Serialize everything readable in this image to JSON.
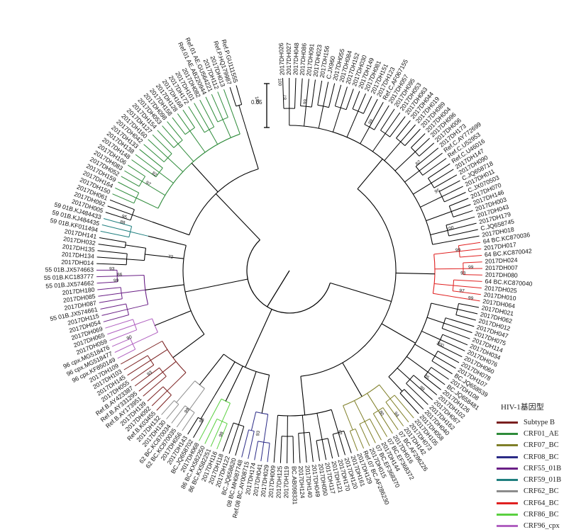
{
  "legend": {
    "title": "HIV-1基因型",
    "items": [
      {
        "label": "Subtype B",
        "color": "#7a1f1f"
      },
      {
        "label": "CRF01_AE",
        "color": "#2e8b3a"
      },
      {
        "label": "CRF07_BC",
        "color": "#7f7f28"
      },
      {
        "label": "CRF08_BC",
        "color": "#2b2b86"
      },
      {
        "label": "CRF55_01B",
        "color": "#6a1f86"
      },
      {
        "label": "CRF59_01B",
        "color": "#1f7f7f"
      },
      {
        "label": "CRF62_BC",
        "color": "#8c8c8c"
      },
      {
        "label": "CRF64_BC",
        "color": "#e02020"
      },
      {
        "label": "CRF86_BC",
        "color": "#5ad040"
      },
      {
        "label": "CRF96_cpx",
        "color": "#b060c0"
      }
    ]
  },
  "scale_bar": {
    "label": "0.05"
  },
  "leaves": [
    {
      "label": "2017DH026",
      "group": "C"
    },
    {
      "label": "2017DH027",
      "group": "C"
    },
    {
      "label": "2017DH048",
      "group": "C"
    },
    {
      "label": "2017DH086",
      "group": "C"
    },
    {
      "label": "2017DH091",
      "group": "C"
    },
    {
      "label": "2017DH023",
      "group": "C"
    },
    {
      "label": "2017DH156",
      "group": "C"
    },
    {
      "label": "C.JX960",
      "group": "C"
    },
    {
      "label": "2017DH055",
      "group": "C"
    },
    {
      "label": "2017DH084",
      "group": "C"
    },
    {
      "label": "2017DH152",
      "group": "C"
    },
    {
      "label": "2017DH030",
      "group": "C"
    },
    {
      "label": "2017DH149",
      "group": "C"
    },
    {
      "label": "2017DH081",
      "group": "C"
    },
    {
      "label": "2017DH151",
      "group": "C"
    },
    {
      "label": "2017DH123",
      "group": "C"
    },
    {
      "label": "Ref.C.AF067155",
      "group": "C"
    },
    {
      "label": "2017DH057",
      "group": "C"
    },
    {
      "label": "2017DH095",
      "group": "C"
    },
    {
      "label": "2017DH053",
      "group": "C"
    },
    {
      "label": "2017DH063",
      "group": "C"
    },
    {
      "label": "2017DH044",
      "group": "C"
    },
    {
      "label": "2017DH019",
      "group": "C"
    },
    {
      "label": "2017DH089",
      "group": "C"
    },
    {
      "label": "2017DH004",
      "group": "C"
    },
    {
      "label": "2017DH096",
      "group": "C"
    },
    {
      "label": "2017DH006",
      "group": "C"
    },
    {
      "label": "2017DH173",
      "group": "C"
    },
    {
      "label": "Ref.C.AY772699",
      "group": "C"
    },
    {
      "label": "Ref.C.U52953",
      "group": "C"
    },
    {
      "label": "Ref.C.U46016",
      "group": "C"
    },
    {
      "label": "2017DH147",
      "group": "C"
    },
    {
      "label": "2017DH090",
      "group": "C"
    },
    {
      "label": "C.JQ658718",
      "group": "C"
    },
    {
      "label": "2017DH011",
      "group": "C"
    },
    {
      "label": "C.JX070503",
      "group": "C"
    },
    {
      "label": "2017DH070",
      "group": "C"
    },
    {
      "label": "2017DH146",
      "group": "C"
    },
    {
      "label": "2017DH003",
      "group": "C"
    },
    {
      "label": "2017DH043",
      "group": "C"
    },
    {
      "label": "2017DH179",
      "group": "C"
    },
    {
      "label": "C.JQ658745",
      "group": "C"
    },
    {
      "label": "2017DH018",
      "group": "C"
    },
    {
      "label": "64 BC.KC870036",
      "group": "CRF64_BC"
    },
    {
      "label": "2017DH017",
      "group": "CRF64_BC"
    },
    {
      "label": "64 BC.KC870042",
      "group": "CRF64_BC"
    },
    {
      "label": "2017DH024",
      "group": "CRF64_BC"
    },
    {
      "label": "2017DH007",
      "group": "CRF64_BC"
    },
    {
      "label": "2017DH080",
      "group": "CRF64_BC"
    },
    {
      "label": "64 BC.KC870040",
      "group": "CRF64_BC"
    },
    {
      "label": "2017DH025",
      "group": "CRF64_BC"
    },
    {
      "label": "2017DH010",
      "group": "CRF64_BC"
    },
    {
      "label": "2017DH064",
      "group": "CRF64_BC"
    },
    {
      "label": "2017DH021",
      "group": "C"
    },
    {
      "label": "2017DH062",
      "group": "C"
    },
    {
      "label": "2017DH012",
      "group": "C"
    },
    {
      "label": "2017DH047",
      "group": "C"
    },
    {
      "label": "2017DH075",
      "group": "C"
    },
    {
      "label": "2017DH114",
      "group": "C"
    },
    {
      "label": "2017DH034",
      "group": "C"
    },
    {
      "label": "2017DH076",
      "group": "C"
    },
    {
      "label": "2017DH060",
      "group": "C"
    },
    {
      "label": "2017DH078",
      "group": "C"
    },
    {
      "label": "2017DH107",
      "group": "C"
    },
    {
      "label": "BC.JQ658539",
      "group": "C"
    },
    {
      "label": "2017DH108",
      "group": "C"
    },
    {
      "label": "BC.JQ658481",
      "group": "C"
    },
    {
      "label": "2017DH126",
      "group": "C"
    },
    {
      "label": "2017DH102",
      "group": "C"
    },
    {
      "label": "2017DH067",
      "group": "C"
    },
    {
      "label": "2017DH162",
      "group": "C"
    },
    {
      "label": "2017DH040",
      "group": "C"
    },
    {
      "label": "2017DH058",
      "group": "C"
    },
    {
      "label": "2017DH105",
      "group": "CRF07_BC"
    },
    {
      "label": "2017DH073",
      "group": "CRF07_BC"
    },
    {
      "label": "2017DH142",
      "group": "CRF07_BC"
    },
    {
      "label": "07 BC.AF286226",
      "group": "CRF07_BC"
    },
    {
      "label": "2017DH016",
      "group": "CRF07_BC"
    },
    {
      "label": "07 BC.EF368372",
      "group": "CRF07_BC"
    },
    {
      "label": "2017DH144",
      "group": "CRF07_BC"
    },
    {
      "label": "07 BC.EF368370",
      "group": "CRF07_BC"
    },
    {
      "label": "2017DH015",
      "group": "CRF07_BC"
    },
    {
      "label": "Ref.07 BC.AF286230",
      "group": "CRF07_BC"
    },
    {
      "label": "2017DH129",
      "group": "CRF07_BC"
    },
    {
      "label": "2017DH161",
      "group": "C"
    },
    {
      "label": "2017DH120",
      "group": "C"
    },
    {
      "label": "2017DH170",
      "group": "C"
    },
    {
      "label": "2017DH121",
      "group": "C"
    },
    {
      "label": "2017DH117",
      "group": "C"
    },
    {
      "label": "2017DH050",
      "group": "C"
    },
    {
      "label": "2017DH049",
      "group": "C"
    },
    {
      "label": "2017DH140",
      "group": "C"
    },
    {
      "label": "2017DH124",
      "group": "C"
    },
    {
      "label": "BC.AB098331",
      "group": "C"
    },
    {
      "label": "2017DH119",
      "group": "C"
    },
    {
      "label": "2017DH125",
      "group": "C"
    },
    {
      "label": "2017DH009",
      "group": "C"
    },
    {
      "label": "2017DH029",
      "group": "CRF08_BC"
    },
    {
      "label": "2017DH041",
      "group": "CRF08_BC"
    },
    {
      "label": "2017DH174",
      "group": "CRF08_BC"
    },
    {
      "label": "Ref.08 BC.AY008715",
      "group": "CRF08_BC"
    },
    {
      "label": "08 BC.MH087748",
      "group": "CRF08_BC"
    },
    {
      "label": "BC.JQ658620",
      "group": "C"
    },
    {
      "label": "2017DH122",
      "group": "C"
    },
    {
      "label": "2017DH118",
      "group": "C"
    },
    {
      "label": "2017DH116",
      "group": "CRF86_BC"
    },
    {
      "label": "86 BC.KX582251",
      "group": "CRF86_BC"
    },
    {
      "label": "86 BC.KX582250",
      "group": "CRF86_BC"
    },
    {
      "label": "2017DH068",
      "group": "CRF86_BC"
    },
    {
      "label": "BC.JQ658702",
      "group": "C"
    },
    {
      "label": "2017DH143",
      "group": "C"
    },
    {
      "label": "2017DH056",
      "group": "CRF62_BC"
    },
    {
      "label": "62 BC.KC870035",
      "group": "CRF62_BC"
    },
    {
      "label": "62 BC.KC870034",
      "group": "CRF62_BC"
    },
    {
      "label": "2017DH130",
      "group": "CRF62_BC"
    },
    {
      "label": "2017DH132",
      "group": "CRF62_BC"
    },
    {
      "label": "Ref.B.K03455",
      "group": "B"
    },
    {
      "label": "2017DH092",
      "group": "B"
    },
    {
      "label": "2017DH139",
      "group": "B"
    },
    {
      "label": "Ref.B.AY173951",
      "group": "B"
    },
    {
      "label": "Ref.B.AY331295",
      "group": "B"
    },
    {
      "label": "Ref.B.AY423387",
      "group": "B"
    },
    {
      "label": "2017DH055",
      "group": "B"
    },
    {
      "label": "2017DH145",
      "group": "B"
    },
    {
      "label": "2017DH103",
      "group": "B"
    },
    {
      "label": "2017DH109",
      "group": "B"
    },
    {
      "label": "96 cpx.KF850149",
      "group": "CRF96_cpx"
    },
    {
      "label": "96 cpx.MG518477",
      "group": "CRF96_cpx"
    },
    {
      "label": "96 cpx.MG518476",
      "group": "CRF96_cpx"
    },
    {
      "label": "2017DH059",
      "group": "CRF96_cpx"
    },
    {
      "label": "2017DH065",
      "group": "CRF96_cpx"
    },
    {
      "label": "2017DH069",
      "group": "CRF96_cpx"
    },
    {
      "label": "2017DH054",
      "group": "CRF55_01B"
    },
    {
      "label": "2017DH115",
      "group": "CRF55_01B"
    },
    {
      "label": "55 01B.JX574661",
      "group": "CRF55_01B"
    },
    {
      "label": "2017DH087",
      "group": "CRF55_01B"
    },
    {
      "label": "2017DH085",
      "group": "CRF55_01B"
    },
    {
      "label": "2017DH180",
      "group": "CRF55_01B"
    },
    {
      "label": "55 01B.JX574662",
      "group": "CRF55_01B"
    },
    {
      "label": "55 01B.KC183777",
      "group": "CRF55_01B"
    },
    {
      "label": "55 01B.JX574663",
      "group": "CRF55_01B"
    },
    {
      "label": "2017DH014",
      "group": "X"
    },
    {
      "label": "2017DH134",
      "group": "X"
    },
    {
      "label": "2017DH135",
      "group": "X"
    },
    {
      "label": "2017DH032",
      "group": "X"
    },
    {
      "label": "2017DH141",
      "group": "X"
    },
    {
      "label": "59 01B.KF011494",
      "group": "CRF59_01B"
    },
    {
      "label": "59 01B.KJ484435",
      "group": "CRF59_01B"
    },
    {
      "label": "59 01B.KJ484433",
      "group": "CRF59_01B"
    },
    {
      "label": "2017DH005",
      "group": "X"
    },
    {
      "label": "2017DH092",
      "group": "X"
    },
    {
      "label": "2017DH061",
      "group": "X"
    },
    {
      "label": "2017DH150",
      "group": "CRF01_AE"
    },
    {
      "label": "2017DH164",
      "group": "CRF01_AE"
    },
    {
      "label": "2017DH159",
      "group": "CRF01_AE"
    },
    {
      "label": "2017DH052",
      "group": "CRF01_AE"
    },
    {
      "label": "2017DH083",
      "group": "CRF01_AE"
    },
    {
      "label": "2017DH106",
      "group": "CRF01_AE"
    },
    {
      "label": "2017DH148",
      "group": "CRF01_AE"
    },
    {
      "label": "2017DH138",
      "group": "CRF01_AE"
    },
    {
      "label": "2017DH133",
      "group": "CRF01_AE"
    },
    {
      "label": "2017DH042",
      "group": "CRF01_AE"
    },
    {
      "label": "2017DH160",
      "group": "CRF01_AE"
    },
    {
      "label": "2017DH127",
      "group": "CRF01_AE"
    },
    {
      "label": "2017DH154",
      "group": "CRF01_AE"
    },
    {
      "label": "2017DH053",
      "group": "CRF01_AE"
    },
    {
      "label": "2017DH098",
      "group": "CRF01_AE"
    },
    {
      "label": "2017DH158",
      "group": "CRF01_AE"
    },
    {
      "label": "2017DH128",
      "group": "CRF01_AE"
    },
    {
      "label": "2017DH168",
      "group": "CRF01_AE"
    },
    {
      "label": "2017DH172",
      "group": "CRF01_AE"
    },
    {
      "label": "2017DH101",
      "group": "CRF01_AE"
    },
    {
      "label": "2017DH082",
      "group": "CRF01_AE"
    },
    {
      "label": "Ref.01 AE.AB220944",
      "group": "CRF01_AE"
    },
    {
      "label": "Ref.01 AE.GU564221",
      "group": "CRF01_AE"
    },
    {
      "label": "2017DH112",
      "group": "CRF01_AE"
    },
    {
      "label": "2017DH013",
      "group": "CRF01_AE"
    },
    {
      "label": "Ref.P.HQ179987",
      "group": "X"
    },
    {
      "label": "Ref.P.GU111555",
      "group": "X"
    }
  ],
  "bootstrap_labels": [
    {
      "text": "100",
      "leaf": 184.5,
      "r": 0.98
    },
    {
      "text": "100",
      "leaf": 180.5,
      "r": 0.9
    },
    {
      "text": "87",
      "leaf": 0.5,
      "r": 0.9
    },
    {
      "text": "99",
      "leaf": 4,
      "r": 0.88
    },
    {
      "text": "99",
      "leaf": 16,
      "r": 0.88
    },
    {
      "text": "82",
      "leaf": 27,
      "r": 0.87
    },
    {
      "text": "95",
      "leaf": 33,
      "r": 0.87
    },
    {
      "text": "100",
      "leaf": 40,
      "r": 0.86
    },
    {
      "text": "99",
      "leaf": 44,
      "r": 0.88
    },
    {
      "text": "93",
      "leaf": 48,
      "r": 0.9
    },
    {
      "text": "99",
      "leaf": 47,
      "r": 0.94
    },
    {
      "text": "97",
      "leaf": 51,
      "r": 0.9
    },
    {
      "text": "99",
      "leaf": 52,
      "r": 0.95
    },
    {
      "text": "100",
      "leaf": 61,
      "r": 0.87
    },
    {
      "text": "85",
      "leaf": 67,
      "r": 0.9
    },
    {
      "text": "99",
      "leaf": 69,
      "r": 0.92
    },
    {
      "text": "80",
      "leaf": 77,
      "r": 0.88
    },
    {
      "text": "94",
      "leaf": 75,
      "r": 0.93
    },
    {
      "text": "97",
      "leaf": 85,
      "r": 0.88
    },
    {
      "text": "93",
      "leaf": 99,
      "r": 0.86
    },
    {
      "text": "99",
      "leaf": 105,
      "r": 0.92
    },
    {
      "text": "98",
      "leaf": 109,
      "r": 0.9
    },
    {
      "text": "99",
      "leaf": 112,
      "r": 0.9
    },
    {
      "text": "93",
      "leaf": 121,
      "r": 0.9
    },
    {
      "text": "90",
      "leaf": 128,
      "r": 0.9
    },
    {
      "text": "72",
      "leaf": 143,
      "r": 0.62
    },
    {
      "text": "99",
      "leaf": 138,
      "r": 0.9
    },
    {
      "text": "86",
      "leaf": 139,
      "r": 0.88
    },
    {
      "text": "93",
      "leaf": 140,
      "r": 0.92
    },
    {
      "text": "95",
      "leaf": 149,
      "r": 0.9
    },
    {
      "text": "88",
      "leaf": 148,
      "r": 0.9
    },
    {
      "text": "97",
      "leaf": 156,
      "r": 0.86
    },
    {
      "text": "82",
      "leaf": 158,
      "r": 0.86
    }
  ]
}
